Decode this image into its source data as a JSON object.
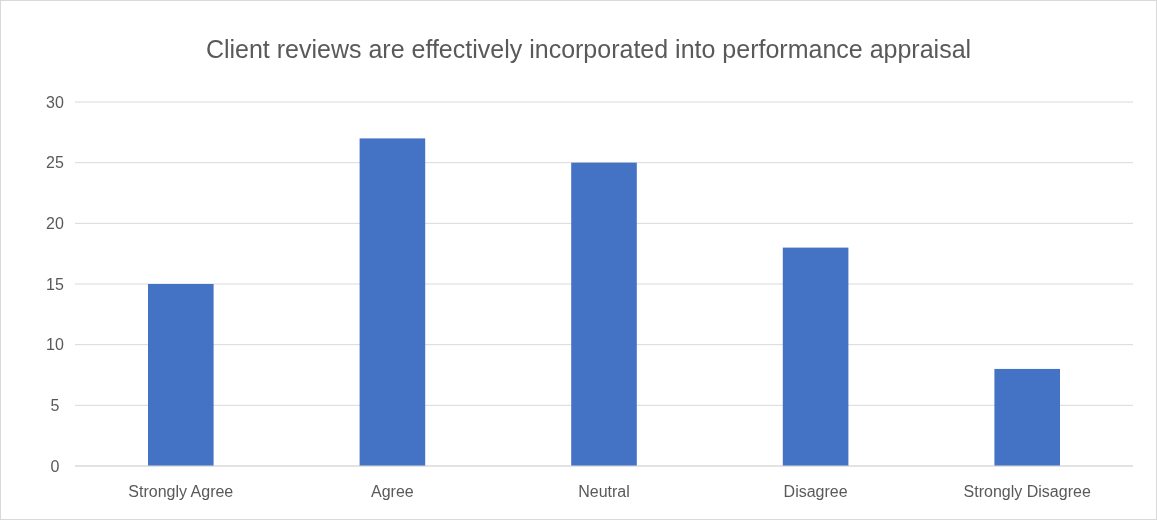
{
  "chart_data": {
    "type": "bar",
    "title": "Client reviews are effectively incorporated into performance appraisal",
    "categories": [
      "Strongly Agree",
      "Agree",
      "Neutral",
      "Disagree",
      "Strongly Disagree"
    ],
    "values": [
      15,
      27,
      25,
      18,
      8
    ],
    "color": "#4472c4",
    "ylim": [
      0,
      30
    ],
    "yticks": [
      0,
      5,
      10,
      15,
      20,
      25,
      30
    ],
    "grid": "y"
  }
}
